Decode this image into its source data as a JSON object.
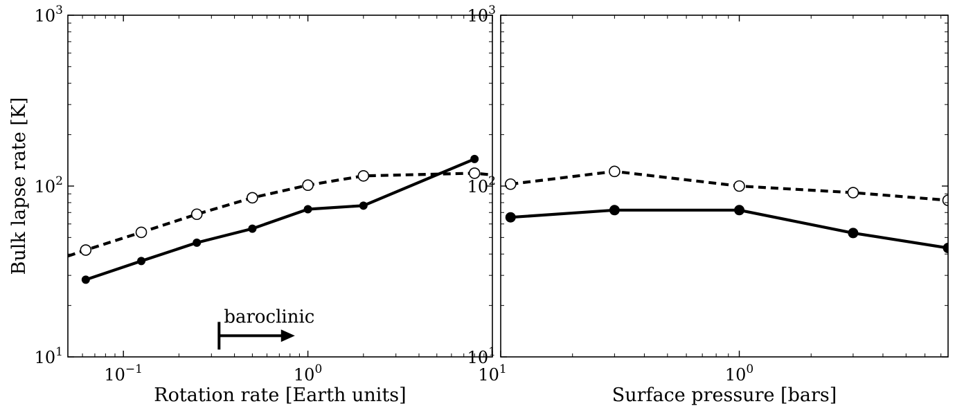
{
  "chart_data": [
    {
      "type": "line",
      "xlabel": "Rotation rate [Earth units]",
      "ylabel": "Bulk lapse rate [K]",
      "xscale": "log",
      "yscale": "log",
      "xlim": [
        0.05,
        10
      ],
      "ylim": [
        10,
        1000
      ],
      "x_ticks": [
        {
          "value": 0.1,
          "base": "10",
          "exp": "−1"
        },
        {
          "value": 1,
          "base": "10",
          "exp": "0"
        },
        {
          "value": 10,
          "base": "10",
          "exp": "1"
        }
      ],
      "y_ticks": [
        {
          "value": 10,
          "base": "10",
          "exp": "1"
        },
        {
          "value": 100,
          "base": "10",
          "exp": "2"
        },
        {
          "value": 1000,
          "base": "10",
          "exp": "3"
        }
      ],
      "series": [
        {
          "style": "solid",
          "marker": "filled-circle",
          "x": [
            0.0625,
            0.125,
            0.25,
            0.5,
            1,
            2,
            8
          ],
          "y": [
            28.3,
            36.4,
            46.6,
            56.3,
            73.2,
            76.8,
            144
          ]
        },
        {
          "style": "dashed",
          "marker": "open-circle",
          "x": [
            0.0625,
            0.125,
            0.25,
            0.5,
            1,
            2,
            8
          ],
          "y": [
            42.2,
            53.6,
            68.4,
            85.4,
            101.2,
            114.7,
            118.9
          ],
          "extend_x": [
            0.05,
            10
          ],
          "extend_y": [
            38.9,
            116.2
          ]
        }
      ],
      "annotation": {
        "text": "baroclinic",
        "x_start": 0.33,
        "x_end": 0.85,
        "y": 13.3
      }
    },
    {
      "type": "line",
      "xlabel": "Surface pressure [bars]",
      "ylabel": "",
      "xscale": "log",
      "yscale": "log",
      "xlim": [
        0.1,
        7.5
      ],
      "ylim": [
        10,
        1000
      ],
      "x_ticks": [
        {
          "value": 1,
          "base": "10",
          "exp": "0"
        }
      ],
      "y_ticks": [
        {
          "value": 10,
          "base": "10",
          "exp": "1"
        },
        {
          "value": 100,
          "base": "10",
          "exp": "2"
        },
        {
          "value": 1000,
          "base": "10",
          "exp": "3"
        }
      ],
      "series": [
        {
          "style": "solid",
          "marker": "filled-circle",
          "x": [
            0.11,
            0.3,
            1,
            3,
            7.5
          ],
          "y": [
            65.6,
            72.3,
            72.3,
            53.1,
            43.4
          ]
        },
        {
          "style": "dashed",
          "marker": "open-circle",
          "x": [
            0.11,
            0.3,
            1,
            3,
            7.5
          ],
          "y": [
            102.6,
            121.8,
            100,
            91.5,
            82.5
          ]
        }
      ]
    }
  ]
}
